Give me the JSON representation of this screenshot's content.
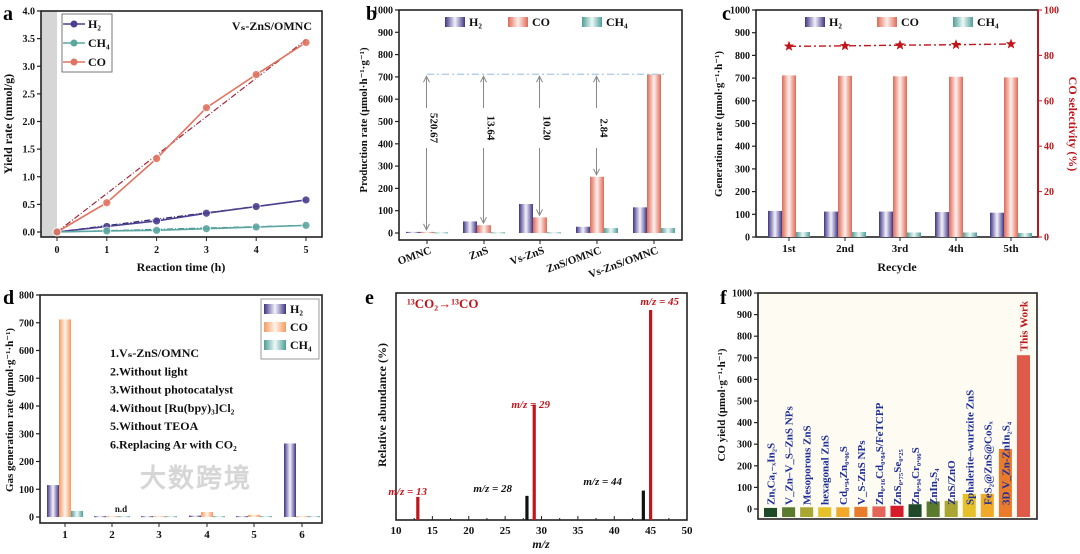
{
  "watermark": "大数跨境",
  "colors": {
    "h2": "#4b3f8f",
    "co": "#e0735f",
    "ch4": "#5aa6a0",
    "co_d": "#f08a4b",
    "red": "#c0151a",
    "blue": "#1f2f9a"
  },
  "chart_data": [
    {
      "panel": "a",
      "type": "line",
      "title": "Vₛ-ZnS/OMNC",
      "xlabel": "Reaction time (h)",
      "ylabel": "Yield rate (mmol/g)",
      "xlim": [
        -0.75,
        5.3
      ],
      "ylim": [
        0,
        4
      ],
      "xticks": [
        "0",
        "1",
        "2",
        "3",
        "4",
        "5"
      ],
      "yticks": [
        "0.0",
        "0.5",
        "1.0",
        "1.5",
        "2.0",
        "2.5",
        "3.0",
        "3.5",
        "4.0"
      ],
      "x": [
        0,
        1,
        2,
        3,
        4,
        5
      ],
      "series": [
        {
          "name": "H₂",
          "values": [
            0,
            0.1,
            0.2,
            0.34,
            0.46,
            0.58
          ],
          "fit": [
            0,
            0.58
          ]
        },
        {
          "name": "CH₄",
          "values": [
            0,
            0.02,
            0.03,
            0.06,
            0.09,
            0.12
          ],
          "fit": [
            0,
            0.12
          ]
        },
        {
          "name": "CO",
          "values": [
            0,
            0.53,
            1.33,
            2.25,
            2.85,
            3.43
          ],
          "fit": [
            0,
            3.48
          ]
        }
      ],
      "legend": "top-left",
      "shaded_region": [
        -0.75,
        0
      ]
    },
    {
      "panel": "b",
      "type": "bar",
      "ylabel": "Production rate (μmol·h⁻¹·g⁻¹)",
      "ylim": [
        0,
        1000
      ],
      "yticks": [
        "0",
        "100",
        "200",
        "300",
        "400",
        "500",
        "600",
        "700",
        "800",
        "900",
        "1000"
      ],
      "categories": [
        "OMNC",
        "ZnS",
        "Vs-ZnS",
        "ZnS/OMNC",
        "Vs-ZnS/OMNC"
      ],
      "series": [
        {
          "name": "H₂",
          "values": [
            5,
            52,
            130,
            28,
            115
          ]
        },
        {
          "name": "CO",
          "values": [
            5,
            35,
            70,
            252,
            712
          ]
        },
        {
          "name": "CH₄",
          "values": [
            3,
            3,
            3,
            22,
            22
          ]
        }
      ],
      "ratio_labels": [
        "520.67",
        "13.64",
        "10.20",
        "2.84"
      ],
      "reference_line": 712,
      "legend": "top"
    },
    {
      "panel": "c",
      "type": "bar",
      "xlabel": "Recycle",
      "ylabel": "Generation rate (μmol·g⁻¹·h⁻¹)",
      "ylabel2": "CO selectivity (%)",
      "ylim": [
        0,
        1000
      ],
      "ylim2": [
        0,
        100
      ],
      "yticks": [
        "0",
        "100",
        "200",
        "300",
        "400",
        "500",
        "600",
        "700",
        "800",
        "900",
        "1000"
      ],
      "yticks2": [
        "0",
        "20",
        "40",
        "60",
        "80",
        "100"
      ],
      "categories": [
        "1st",
        "2nd",
        "3rd",
        "4th",
        "5th"
      ],
      "series": [
        {
          "name": "H₂",
          "values": [
            115,
            112,
            112,
            110,
            107
          ]
        },
        {
          "name": "CO",
          "values": [
            712,
            710,
            708,
            706,
            703
          ]
        },
        {
          "name": "CH₄",
          "values": [
            22,
            22,
            20,
            20,
            18
          ]
        }
      ],
      "selectivity": [
        84,
        84.2,
        84.5,
        84.7,
        85
      ],
      "legend": "top"
    },
    {
      "panel": "d",
      "type": "bar",
      "ylabel": "Gas generation rate (μmol·g⁻¹·h⁻¹)",
      "ylim": [
        0,
        800
      ],
      "yticks": [
        "0",
        "100",
        "200",
        "300",
        "400",
        "500",
        "600",
        "700",
        "800"
      ],
      "categories": [
        "1",
        "2",
        "3",
        "4",
        "5",
        "6"
      ],
      "series": [
        {
          "name": "H₂",
          "values": [
            115,
            3,
            3,
            5,
            3,
            265
          ]
        },
        {
          "name": "CO",
          "values": [
            712,
            3,
            3,
            18,
            8,
            3
          ]
        },
        {
          "name": "CH₄",
          "values": [
            22,
            3,
            3,
            3,
            3,
            3
          ]
        }
      ],
      "annotation": "n.d",
      "conditions": [
        "1.Vₛ-ZnS/OMNC",
        "2.Without light",
        "3.Without photocatalyst",
        "4.Without [Ru(bpy)₃]Cl₂",
        "5.Without TEOA",
        "6.Replacing Ar with CO₂"
      ],
      "legend": "top-right"
    },
    {
      "panel": "e",
      "type": "bar",
      "title": "¹³CO₂→¹³CO",
      "xlabel": "m/z",
      "ylabel": "Relative abundance (%)",
      "xlim": [
        10,
        50
      ],
      "xticks": [
        "10",
        "15",
        "20",
        "25",
        "30",
        "35",
        "40",
        "45",
        "50"
      ],
      "peaks": [
        {
          "mz": 13,
          "value": 11,
          "label": "m/z = 13",
          "labeled": true
        },
        {
          "mz": 28,
          "value": 11.5,
          "label": "m/z = 28",
          "labeled": false
        },
        {
          "mz": 29,
          "value": 55,
          "label": "m/z = 29",
          "labeled": true
        },
        {
          "mz": 44,
          "value": 14,
          "label": "m/z = 44",
          "labeled": false
        },
        {
          "mz": 45,
          "value": 100,
          "label": "m/z = 45",
          "labeled": true
        }
      ]
    },
    {
      "panel": "f",
      "type": "bar",
      "ylabel": "CO yield (μmol·g⁻¹·h⁻¹)",
      "ylim": [
        0,
        1000
      ],
      "yticks": [
        "0",
        "100",
        "200",
        "300",
        "400",
        "500",
        "600",
        "700",
        "800",
        "900",
        "1000"
      ],
      "categories": [
        "ZnₓCa₁₋ₓIn₂S",
        "V_Zn–V_S–ZnS NPs",
        "Mesoporous ZnS",
        "hexagonal ZnS",
        "Cd₀.₉₄Zn₀.₀₆S",
        "V_S-ZnS NPs",
        "Zn₀.₁₆Cd₀.₈₄S/FeTCPP",
        "ZnS₀.₇₅Se₀.₂₅",
        "Zn₀.₉₄Cr₀.₀₆S",
        "ZnIn₂S₄",
        "ZnS/ZnO",
        "Sphalerite–wurtzite ZnS",
        "FeS₂@ZnS@CoSₓ",
        "3D V_Zn-ZnIn₂S₄",
        "This Work"
      ],
      "values": [
        5,
        8,
        8,
        8,
        8,
        10,
        12,
        15,
        22,
        35,
        38,
        70,
        70,
        278,
        712
      ],
      "bar_colors": [
        "#1f4a2a",
        "#5a7a2e",
        "#a9a632",
        "#e6c12a",
        "#f0a928",
        "#e87b2c",
        "#e5645a",
        "#d61c2a",
        "#1f4a2a",
        "#5a7a2e",
        "#a9a632",
        "#e6c12a",
        "#f0a928",
        "#e87b2c",
        "#e05a4a"
      ]
    }
  ],
  "panels": [
    "a",
    "b",
    "c",
    "d",
    "e",
    "f"
  ]
}
